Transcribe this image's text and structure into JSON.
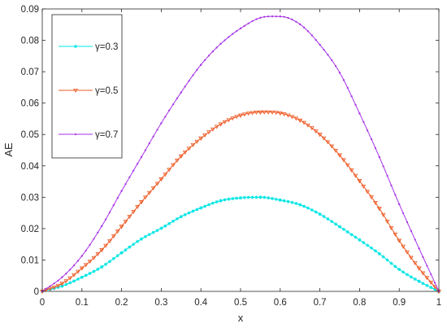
{
  "chart_data": {
    "type": "line",
    "title": "",
    "xlabel": "x",
    "ylabel": "AE",
    "xlim": [
      0,
      1
    ],
    "ylim": [
      0,
      0.09
    ],
    "x_ticks": [
      0,
      0.1,
      0.2,
      0.3,
      0.4,
      0.5,
      0.6,
      0.7,
      0.8,
      0.9,
      1
    ],
    "x_tick_labels": [
      "0",
      "0.1",
      "0.2",
      "0.3",
      "0.4",
      "0.5",
      "0.6",
      "0.7",
      "0.8",
      "0.9",
      "1"
    ],
    "y_ticks": [
      0,
      0.01,
      0.02,
      0.03,
      0.04,
      0.05,
      0.06,
      0.07,
      0.08,
      0.09
    ],
    "y_tick_labels": [
      "0",
      "0.01",
      "0.02",
      "0.03",
      "0.04",
      "0.05",
      "0.06",
      "0.07",
      "0.08",
      "0.09"
    ],
    "grid": false,
    "legend_position": "top-left",
    "x": [
      0,
      0.05,
      0.1,
      0.15,
      0.2,
      0.25,
      0.3,
      0.35,
      0.4,
      0.45,
      0.5,
      0.55,
      0.6,
      0.65,
      0.7,
      0.75,
      0.8,
      0.85,
      0.9,
      0.95,
      1
    ],
    "series": [
      {
        "name": "γ=0.3",
        "color": "#00e5e5",
        "marker": "asterisk",
        "values": [
          0,
          0.0017,
          0.0045,
          0.0078,
          0.0123,
          0.0167,
          0.0201,
          0.0238,
          0.0266,
          0.0289,
          0.0298,
          0.03,
          0.0291,
          0.0276,
          0.0246,
          0.0206,
          0.0164,
          0.012,
          0.007,
          0.0032,
          0
        ]
      },
      {
        "name": "γ=0.5",
        "color": "#ee5a24",
        "marker": "triangle-down",
        "values": [
          0,
          0.0025,
          0.0074,
          0.0132,
          0.0207,
          0.0285,
          0.0358,
          0.0431,
          0.0488,
          0.0533,
          0.0561,
          0.0571,
          0.0568,
          0.0545,
          0.05,
          0.0434,
          0.0352,
          0.0264,
          0.0162,
          0.0074,
          0
        ]
      },
      {
        "name": "γ=0.7",
        "color": "#a632e6",
        "marker": "dot",
        "values": [
          0,
          0.0045,
          0.0113,
          0.0208,
          0.032,
          0.0428,
          0.0536,
          0.0634,
          0.0722,
          0.0789,
          0.0838,
          0.0872,
          0.0876,
          0.0851,
          0.0786,
          0.0697,
          0.0567,
          0.0428,
          0.0278,
          0.0137,
          0
        ]
      }
    ]
  }
}
